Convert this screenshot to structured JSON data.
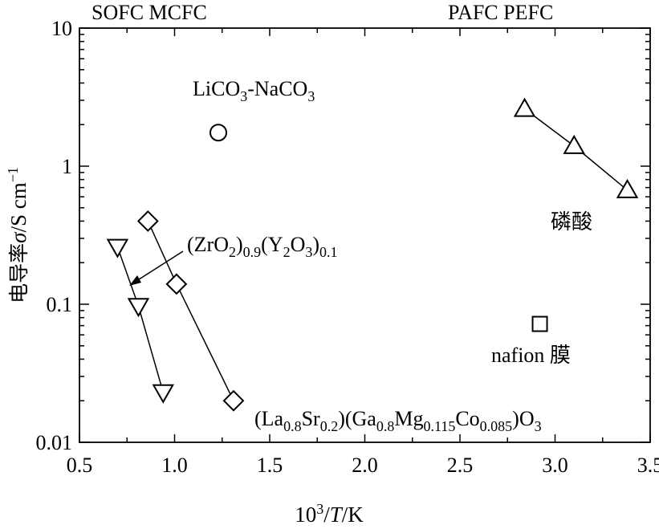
{
  "chart_data": {
    "type": "scatter",
    "title": "",
    "xlabel": {
      "main": "10",
      "sup": "3",
      "sep": "/",
      "var": "T",
      "unit": "/K"
    },
    "ylabel": {
      "prefix": "电导率",
      "var": "σ",
      "unit": "/S cm",
      "sup": "−1"
    },
    "xlim": [
      0.5,
      3.5
    ],
    "ylim": [
      0.01,
      10
    ],
    "yscale": "log",
    "grid": false,
    "xticks": [
      "0.5",
      "1.0",
      "1.5",
      "2.0",
      "2.5",
      "3.0",
      "3.5"
    ],
    "xtick_values": [
      0.5,
      1.0,
      1.5,
      2.0,
      2.5,
      3.0,
      3.5
    ],
    "yticks": [
      "0.01",
      "0.1",
      "1",
      "10"
    ],
    "ytick_values": [
      0.01,
      0.1,
      1,
      10
    ],
    "top_labels": {
      "left": "SOFC MCFC",
      "right": "PAFC PEFC"
    },
    "series": [
      {
        "marker": "triangle-down",
        "connected": true,
        "points": [
          {
            "x": 0.7,
            "y": 0.26
          },
          {
            "x": 0.81,
            "y": 0.097
          },
          {
            "x": 0.94,
            "y": 0.023
          }
        ]
      },
      {
        "marker": "diamond",
        "connected": true,
        "points": [
          {
            "x": 0.86,
            "y": 0.4
          },
          {
            "x": 1.01,
            "y": 0.14
          },
          {
            "x": 1.31,
            "y": 0.02
          }
        ]
      },
      {
        "marker": "circle",
        "connected": false,
        "points": [
          {
            "x": 1.23,
            "y": 1.75
          }
        ]
      },
      {
        "marker": "triangle-up",
        "connected": true,
        "points": [
          {
            "x": 2.84,
            "y": 2.6
          },
          {
            "x": 3.1,
            "y": 1.4
          },
          {
            "x": 3.38,
            "y": 0.67
          }
        ]
      },
      {
        "marker": "square",
        "connected": false,
        "points": [
          {
            "x": 2.92,
            "y": 0.072
          }
        ]
      }
    ],
    "annotations": {
      "licoco": {
        "base1": "LiCO",
        "sub1": "3",
        "base2": "-NaCO",
        "sub2": "3"
      },
      "zro": {
        "p1": "(ZrO",
        "s1": "2",
        "p2": ")",
        "s2": "0.9",
        "p3": "(Y",
        "s3": "2",
        "p4": "O",
        "s4": "3",
        "p5": ")",
        "s5": "0.1"
      },
      "lsgmc": {
        "p1": "(La",
        "s1": "0.8",
        "p2": "Sr",
        "s2": "0.2",
        "p3": ")(Ga",
        "s3": "0.8",
        "p4": "Mg",
        "s4": "0.115",
        "p5": "Co",
        "s5": "0.085",
        "p6": ")O",
        "s6": "3"
      },
      "phosphoric": "磷酸",
      "nafion": "nafion 膜"
    }
  }
}
